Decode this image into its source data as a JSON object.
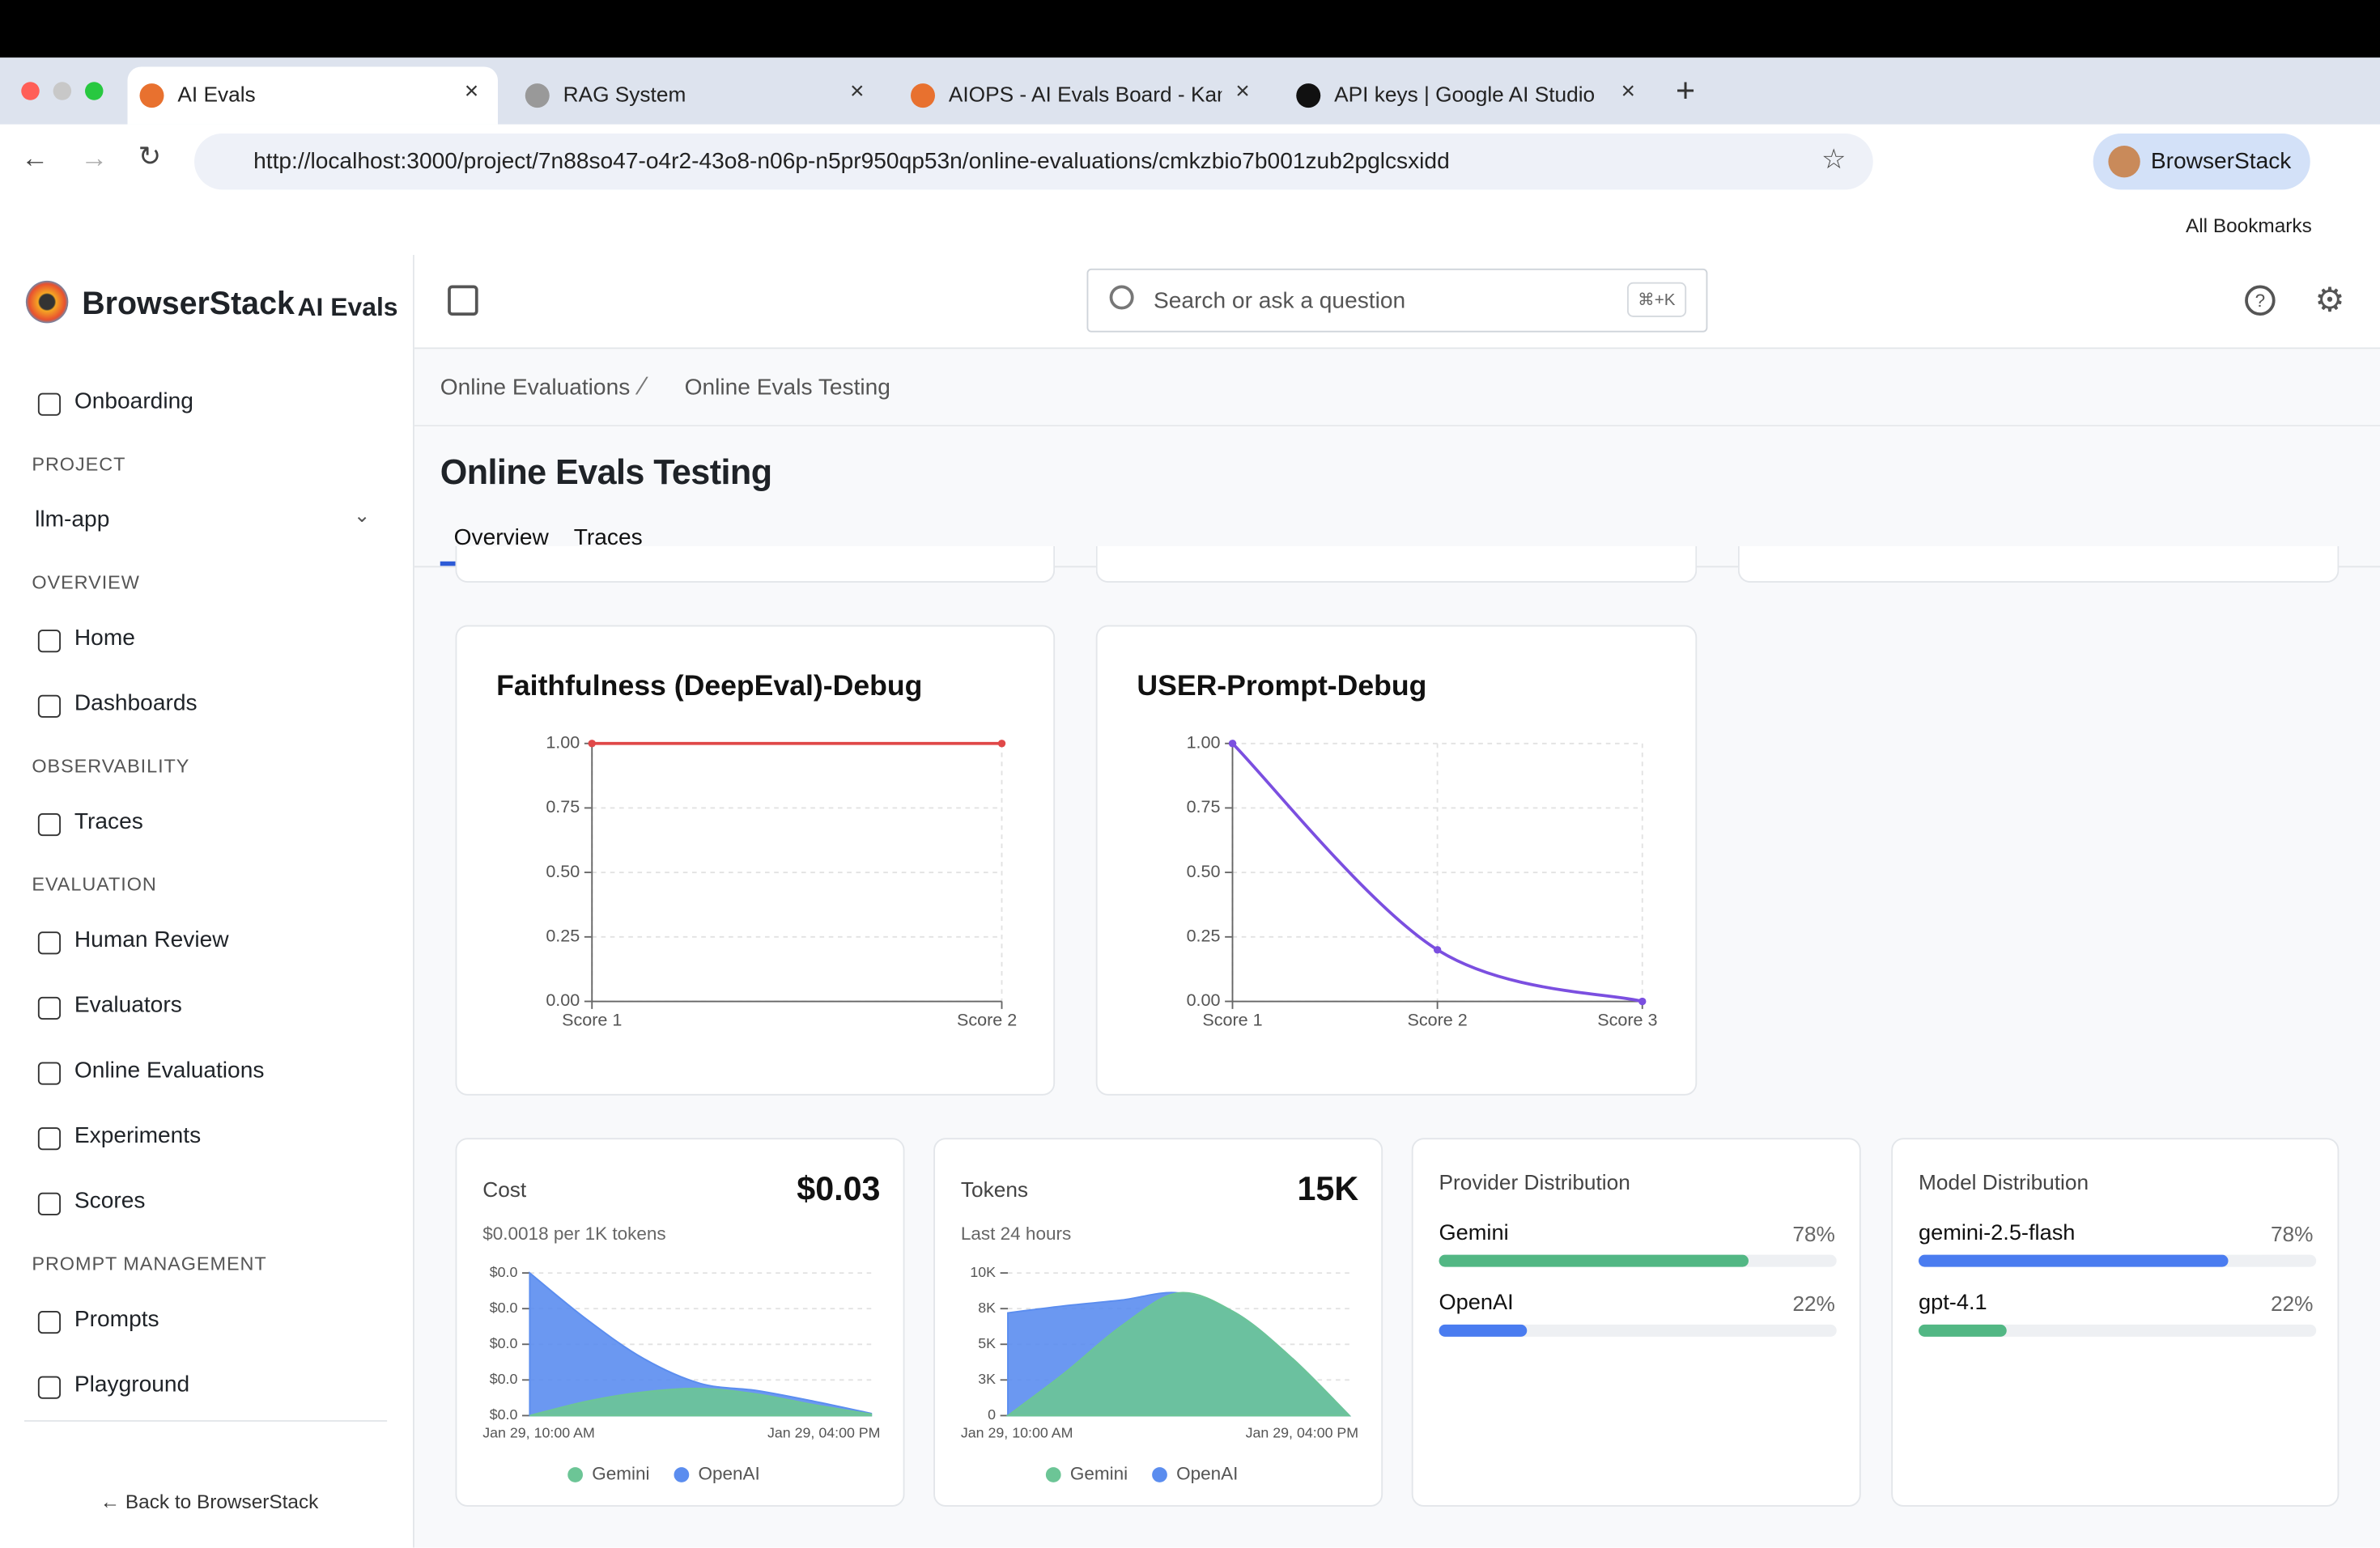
{
  "browser": {
    "tabs": [
      "AI Evals",
      "RAG System",
      "AIOPS - AI Evals Board - Kant",
      "API keys | Google AI Studio"
    ],
    "url": "http://localhost:3000/project/7n88so47-o4r2-43o8-n06p-n5pr950qp53n/online-evaluations/cmkzbio7b001zub2pglcsxidd",
    "profile": "BrowserStack",
    "bookmarks": "All Bookmarks"
  },
  "sidebar": {
    "brand": "BrowserStack",
    "product": "AI Evals",
    "onboarding": "Onboarding",
    "project_label": "PROJECT",
    "project": "llm-app",
    "sections": [
      {
        "title": "OVERVIEW",
        "items": [
          "Home",
          "Dashboards"
        ]
      },
      {
        "title": "OBSERVABILITY",
        "items": [
          "Traces"
        ]
      },
      {
        "title": "EVALUATION",
        "items": [
          "Human Review",
          "Evaluators",
          "Online Evaluations",
          "Experiments",
          "Scores"
        ]
      },
      {
        "title": "PROMPT MANAGEMENT",
        "items": [
          "Prompts",
          "Playground"
        ]
      }
    ],
    "back": "Back to BrowserStack"
  },
  "header": {
    "search": "Search or ask a question",
    "shortcut": "⌘+K"
  },
  "breadcrumb": [
    "Online Evaluations",
    "Online Evals Testing"
  ],
  "page": {
    "title": "Online Evals Testing",
    "tabs": [
      "Overview",
      "Traces"
    ]
  },
  "chart_data": [
    {
      "type": "line",
      "title": "Faithfulness (DeepEval)-Debug",
      "categories": [
        "Score 1",
        "Score 2"
      ],
      "values": [
        1,
        1
      ],
      "color": "#e04848",
      "ylim": [
        0,
        1
      ],
      "yticks": [
        {
          "value": 0,
          "label": "0.00"
        },
        {
          "value": 0.25,
          "label": "0.25"
        },
        {
          "value": 0.5,
          "label": "0.50"
        },
        {
          "value": 0.75,
          "label": "0.75"
        },
        {
          "value": 1,
          "label": "1.00"
        }
      ],
      "grid": true
    },
    {
      "type": "line",
      "title": "USER-Prompt-Debug",
      "categories": [
        "Score 1",
        "Score 2",
        "Score 3"
      ],
      "values": [
        1,
        0.2,
        0
      ],
      "color": "#7b4fe0",
      "smooth": true,
      "ylim": [
        0,
        1
      ],
      "yticks": [
        {
          "value": 0,
          "label": "0.00"
        },
        {
          "value": 0.25,
          "label": "0.25"
        },
        {
          "value": 0.5,
          "label": "0.50"
        },
        {
          "value": 0.75,
          "label": "0.75"
        },
        {
          "value": 1,
          "label": "1.00"
        }
      ],
      "grid": true
    },
    {
      "type": "area",
      "title": "Cost",
      "total": "$0.03",
      "subtitle": "$0.0018 per 1K tokens",
      "categories": [
        "Jan 29, 10:00 AM",
        null,
        null,
        null,
        null,
        null,
        "Jan 29, 04:00 PM"
      ],
      "series": [
        {
          "name": "Gemini",
          "color": "#6cc596",
          "values": [
            0,
            0.002,
            0.0033,
            0.0038,
            0.003,
            0.0015,
            0.0002
          ]
        },
        {
          "name": "OpenAI",
          "color": "#5b8def",
          "values": [
            0.02,
            0.0135,
            0.008,
            0.0045,
            0.0035,
            0.002,
            0.0003
          ]
        }
      ],
      "smooth": true,
      "ylim": [
        0,
        0.02
      ],
      "yticks": [
        {
          "value": 0,
          "label": "$0.0"
        },
        {
          "value": 0.005,
          "label": "$0.0"
        },
        {
          "value": 0.01,
          "label": "$0.0"
        },
        {
          "value": 0.015,
          "label": "$0.0"
        },
        {
          "value": 0.02,
          "label": "$0.0"
        }
      ],
      "grid": true
    },
    {
      "type": "area",
      "title": "Tokens",
      "total": "15K",
      "subtitle": "Last 24 hours",
      "categories": [
        "Jan 29, 10:00 AM",
        null,
        null,
        null,
        null,
        null,
        "Jan 29, 04:00 PM"
      ],
      "series": [
        {
          "name": "Gemini",
          "color": "#6cc596",
          "values": [
            0,
            3000,
            6300,
            8600,
            7200,
            4000,
            0
          ]
        },
        {
          "name": "OpenAI",
          "color": "#5b8def",
          "values": [
            7200,
            7700,
            8100,
            8600,
            7200,
            4000,
            0
          ]
        }
      ],
      "smooth": true,
      "ylim": [
        0,
        10000
      ],
      "yticks": [
        0,
        {
          "value": 2500,
          "label": "3K"
        },
        {
          "value": 5000,
          "label": "5K"
        },
        {
          "value": 7500,
          "label": "8K"
        },
        {
          "value": 10000,
          "label": "10K"
        }
      ],
      "grid": true
    },
    {
      "type": "bar",
      "title": "Provider Distribution",
      "categories": [
        "Gemini",
        "OpenAI"
      ],
      "values": [
        78,
        22
      ],
      "value_labels": [
        "78%",
        "22%"
      ],
      "colors": [
        "#52b784",
        "#4a7cf0"
      ]
    },
    {
      "type": "bar",
      "title": "Model Distribution",
      "categories": [
        "gemini-2.5-flash",
        "gpt-4.1"
      ],
      "values": [
        78,
        22
      ],
      "value_labels": [
        "78%",
        "22%"
      ],
      "colors": [
        "#4a7cf0",
        "#52b784"
      ]
    }
  ]
}
